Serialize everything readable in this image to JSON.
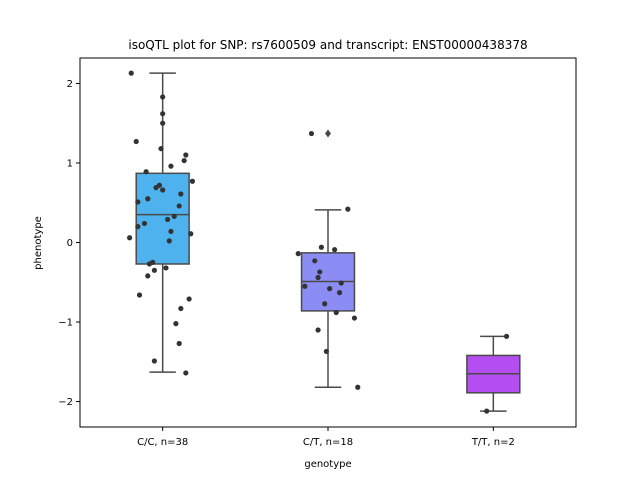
{
  "chart_data": {
    "type": "box",
    "title": "isoQTL plot for SNP: rs7600509 and transcript: ENST00000438378",
    "xlabel": "genotype",
    "ylabel": "phenotype",
    "ylim": [
      -2.32,
      2.32
    ],
    "yticks": [
      -2,
      -1,
      0,
      1,
      2
    ],
    "ytick_labels": [
      "−2",
      "−1",
      "0",
      "1",
      "2"
    ],
    "grid": false,
    "categories": [
      "C/C, n=38",
      "C/T, n=18",
      "T/T, n=2"
    ],
    "box_colors": [
      "#4eb2ef",
      "#8c8cf5",
      "#b44ef0"
    ],
    "boxes": [
      {
        "category": "C/C, n=38",
        "q1": -0.27,
        "median": 0.35,
        "q3": 0.87,
        "whisker_low": -1.63,
        "whisker_high": 2.13,
        "outliers": []
      },
      {
        "category": "C/T, n=18",
        "q1": -0.86,
        "median": -0.49,
        "q3": -0.13,
        "whisker_low": -1.82,
        "whisker_high": 0.41,
        "outliers": [
          1.37
        ]
      },
      {
        "category": "T/T, n=2",
        "q1": -1.89,
        "median": -1.65,
        "q3": -1.42,
        "whisker_low": -2.12,
        "whisker_high": -1.18,
        "outliers": []
      }
    ],
    "points": [
      [
        [
          -0.19,
          2.13
        ],
        [
          0.0,
          1.83
        ],
        [
          0.0,
          1.62
        ],
        [
          0.0,
          1.5
        ],
        [
          -0.16,
          1.27
        ],
        [
          0.14,
          1.1
        ],
        [
          -0.01,
          1.18
        ],
        [
          0.13,
          1.03
        ],
        [
          0.05,
          0.96
        ],
        [
          0.18,
          0.77
        ],
        [
          -0.1,
          0.89
        ],
        [
          -0.02,
          0.72
        ],
        [
          -0.04,
          0.69
        ],
        [
          0.0,
          0.66
        ],
        [
          0.11,
          0.61
        ],
        [
          -0.15,
          0.51
        ],
        [
          -0.09,
          0.55
        ],
        [
          0.1,
          0.46
        ],
        [
          0.07,
          0.33
        ],
        [
          0.03,
          0.29
        ],
        [
          -0.11,
          0.24
        ],
        [
          -0.15,
          0.2
        ],
        [
          0.05,
          0.14
        ],
        [
          0.17,
          0.11
        ],
        [
          -0.2,
          0.06
        ],
        [
          0.04,
          0.02
        ],
        [
          -0.06,
          -0.25
        ],
        [
          -0.08,
          -0.27
        ],
        [
          0.02,
          -0.32
        ],
        [
          -0.09,
          -0.42
        ],
        [
          -0.14,
          -0.66
        ],
        [
          0.16,
          -0.71
        ],
        [
          0.11,
          -0.83
        ],
        [
          0.08,
          -1.02
        ],
        [
          0.1,
          -1.27
        ],
        [
          -0.05,
          -1.49
        ],
        [
          0.14,
          -1.64
        ],
        [
          -0.05,
          -0.35
        ]
      ],
      [
        [
          -0.1,
          1.37
        ],
        [
          0.12,
          0.42
        ],
        [
          -0.18,
          -0.14
        ],
        [
          -0.04,
          -0.06
        ],
        [
          0.04,
          -0.09
        ],
        [
          -0.08,
          -0.23
        ],
        [
          -0.05,
          -0.37
        ],
        [
          -0.06,
          -0.44
        ],
        [
          0.08,
          -0.51
        ],
        [
          -0.14,
          -0.55
        ],
        [
          0.01,
          -0.58
        ],
        [
          0.07,
          -0.63
        ],
        [
          -0.02,
          -0.77
        ],
        [
          0.05,
          -0.88
        ],
        [
          0.16,
          -0.95
        ],
        [
          -0.06,
          -1.1
        ],
        [
          -0.01,
          -1.37
        ],
        [
          0.18,
          -1.82
        ]
      ],
      [
        [
          0.08,
          -1.18
        ],
        [
          -0.04,
          -2.12
        ]
      ]
    ]
  }
}
